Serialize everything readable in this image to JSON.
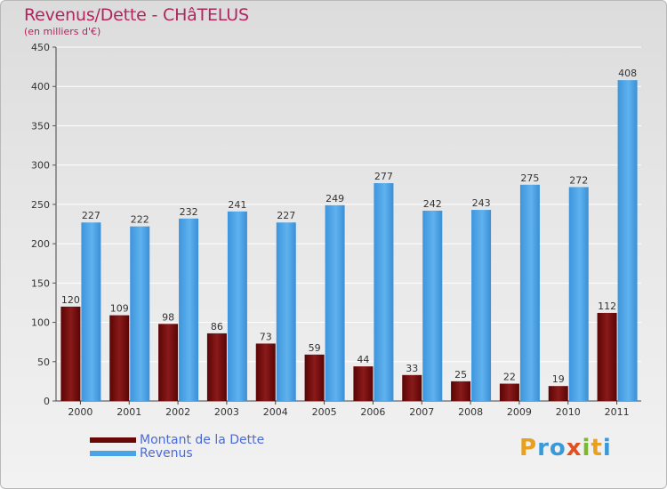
{
  "chart_data": {
    "type": "bar",
    "title": "Revenus/Dette - CHâTELUS",
    "subtitle": "(en milliers d'€)",
    "categories": [
      "2000",
      "2001",
      "2002",
      "2003",
      "2004",
      "2005",
      "2006",
      "2007",
      "2008",
      "2009",
      "2010",
      "2011"
    ],
    "series": [
      {
        "name": "Montant de la Dette",
        "color": "#7a0a0a",
        "values": [
          120,
          109,
          98,
          86,
          73,
          59,
          44,
          33,
          25,
          22,
          19,
          112
        ]
      },
      {
        "name": "Revenus",
        "color": "#4aa3e6",
        "values": [
          227,
          222,
          232,
          241,
          227,
          249,
          277,
          242,
          243,
          275,
          272,
          408
        ]
      }
    ],
    "ylim": [
      0,
      450
    ],
    "yticks": [
      0,
      50,
      100,
      150,
      200,
      250,
      300,
      350,
      400,
      450
    ],
    "grid": true,
    "legend": "bottom-left"
  },
  "logo": {
    "text": "Proxiti",
    "letters": [
      "P",
      "r",
      "o",
      "x",
      "i",
      "t",
      "i"
    ],
    "colors": [
      "#e8a020",
      "#3a9ad9",
      "#3a9ad9",
      "#e05020",
      "#7cb82f",
      "#e8a020",
      "#3a9ad9"
    ]
  }
}
